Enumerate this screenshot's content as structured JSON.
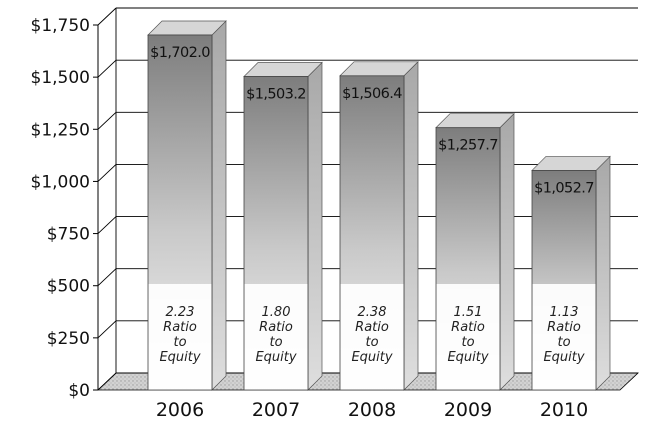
{
  "chart_data": {
    "type": "bar",
    "title": "",
    "xlabel": "",
    "ylabel": "",
    "categories": [
      "2006",
      "2007",
      "2008",
      "2009",
      "2010"
    ],
    "values": [
      1702.0,
      1503.2,
      1506.4,
      1257.7,
      1052.7
    ],
    "value_labels": [
      "$1,702.0",
      "$1,503.2",
      "$1,506.4",
      "$1,257.7",
      "$1,052.7"
    ],
    "ratio_values": [
      "2.23",
      "1.80",
      "2.38",
      "1.51",
      "1.13"
    ],
    "ratio_caption": [
      "Ratio",
      "to",
      "Equity"
    ],
    "y_ticks": [
      "$0",
      "$250",
      "$500",
      "$750",
      "$1,000",
      "$1,250",
      "$1,500",
      "$1,750"
    ],
    "y_tick_values": [
      0,
      250,
      500,
      750,
      1000,
      1250,
      1500,
      1750
    ],
    "ylim": [
      0,
      1750
    ],
    "grid": true,
    "legend": "none",
    "colors": {
      "bar_light": "#f2f2f2",
      "bar_dark": "#7d7d7d",
      "bar_side": "#c4c4c4",
      "bar_top": "#d6d6d6",
      "grid": "#000000",
      "wall": "#ffffff",
      "floor": "#cfcfcf"
    }
  }
}
